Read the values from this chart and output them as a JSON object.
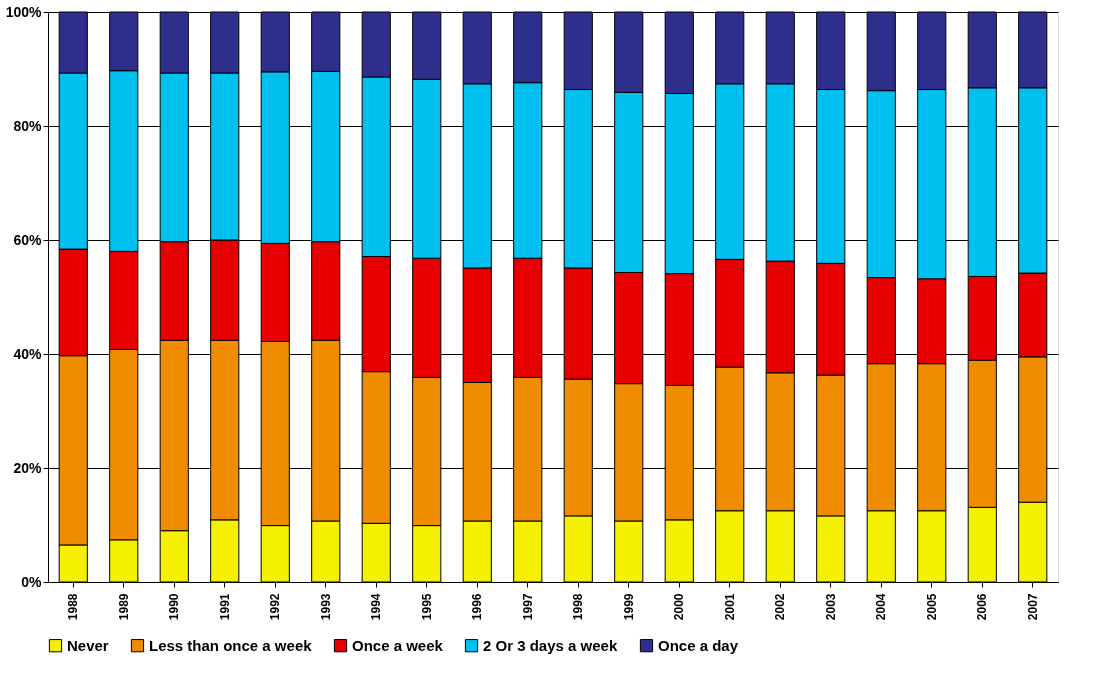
{
  "chart_data": {
    "type": "bar",
    "stacked": true,
    "grid": "y",
    "legend": "bottom",
    "categories": [
      "1988",
      "1989",
      "1990",
      "1991",
      "1992",
      "1993",
      "1994",
      "1995",
      "1996",
      "1997",
      "1998",
      "1999",
      "2000",
      "2001",
      "2002",
      "2003",
      "2004",
      "2005",
      "2006",
      "2007"
    ],
    "ylim": [
      0,
      100
    ],
    "yticks": [
      {
        "value": 0,
        "label": "0%"
      },
      {
        "value": 20,
        "label": "20%"
      },
      {
        "value": 40,
        "label": "40%"
      },
      {
        "value": 60,
        "label": "60%"
      },
      {
        "value": 80,
        "label": "80%"
      },
      {
        "value": 100,
        "label": "100%"
      }
    ],
    "series": [
      {
        "name": "Never",
        "color": "#f5f000",
        "values": [
          6.5,
          7.4,
          9.0,
          10.9,
          9.9,
          10.7,
          10.3,
          9.9,
          10.7,
          10.7,
          11.6,
          10.7,
          10.9,
          12.5,
          12.5,
          11.6,
          12.5,
          12.5,
          13.1,
          14.0
        ]
      },
      {
        "name": "Less than once a week",
        "color": "#f08c00",
        "values": [
          33.2,
          33.4,
          33.4,
          31.5,
          32.3,
          31.7,
          26.6,
          26.0,
          24.3,
          25.2,
          24.0,
          24.1,
          23.6,
          25.2,
          24.2,
          24.7,
          25.8,
          25.8,
          25.8,
          25.5
        ]
      },
      {
        "name": "Once a week",
        "color": "#e80000",
        "values": [
          18.7,
          17.2,
          17.3,
          17.6,
          17.2,
          17.3,
          20.2,
          20.9,
          20.1,
          20.9,
          19.5,
          19.5,
          19.6,
          18.9,
          19.6,
          19.6,
          15.1,
          14.9,
          14.7,
          14.7
        ]
      },
      {
        "name": "2 Or 3 days a week",
        "color": "#00c0f0",
        "values": [
          30.9,
          31.7,
          29.6,
          29.3,
          30.1,
          29.9,
          31.5,
          31.4,
          32.3,
          30.8,
          31.3,
          31.6,
          31.6,
          30.8,
          31.1,
          30.5,
          32.8,
          33.2,
          33.1,
          32.5
        ]
      },
      {
        "name": "Once a day",
        "color": "#2e2e8c",
        "values": [
          10.7,
          10.3,
          10.7,
          10.7,
          10.5,
          10.4,
          11.4,
          11.8,
          12.6,
          12.4,
          13.6,
          14.1,
          14.3,
          12.6,
          12.6,
          13.6,
          13.8,
          13.6,
          13.3,
          13.3
        ]
      }
    ]
  }
}
